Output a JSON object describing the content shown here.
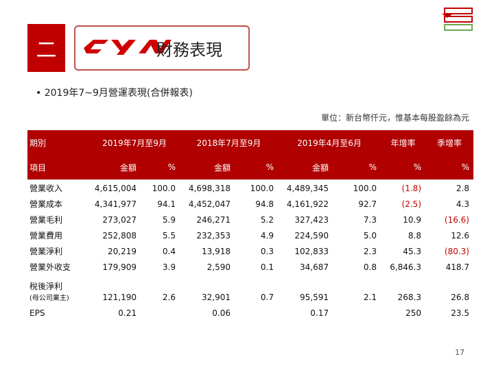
{
  "header": {
    "section": "二",
    "title": "財務表現"
  },
  "bullet": "2019年7~9月營運表現(合併報表)",
  "unit": "單位：新台幣仟元，惟基本每股盈餘為元",
  "table": {
    "header_row1": [
      "期別",
      "2019年7月至9月",
      "2018年7月至9月",
      "2019年4月至6月",
      "年增率",
      "季增率"
    ],
    "header_row2": [
      "項目",
      "金額",
      "%",
      "金額",
      "%",
      "金額",
      "%",
      "%",
      "%"
    ],
    "rows": [
      {
        "label": "營業收入",
        "cells": [
          "4,615,004",
          "100.0",
          "4,698,318",
          "100.0",
          "4,489,345",
          "100.0",
          "(1.8)",
          "2.8"
        ]
      },
      {
        "label": "營業成本",
        "cells": [
          "4,341,977",
          "94.1",
          "4,452,047",
          "94.8",
          "4,161,922",
          "92.7",
          "(2.5)",
          "4.3"
        ]
      },
      {
        "label": "營業毛利",
        "cells": [
          "273,027",
          "5.9",
          "246,271",
          "5.2",
          "327,423",
          "7.3",
          "10.9",
          "(16.6)"
        ]
      },
      {
        "label": "營業費用",
        "cells": [
          "252,808",
          "5.5",
          "232,353",
          "4.9",
          "224,590",
          "5.0",
          "8.8",
          "12.6"
        ]
      },
      {
        "label": "營業淨利",
        "cells": [
          "20,219",
          "0.4",
          "13,918",
          "0.3",
          "102,833",
          "2.3",
          "45.3",
          "(80.3)"
        ]
      },
      {
        "label": "營業外收支",
        "cells": [
          "179,909",
          "3.9",
          "2,590",
          "0.1",
          "34,687",
          "0.8",
          "6,846.3",
          "418.7"
        ]
      },
      {
        "label": "稅後淨利",
        "note": "(母公司業主)",
        "cells": [
          "121,190",
          "2.6",
          "32,901",
          "0.7",
          "95,591",
          "2.1",
          "268.3",
          "26.8"
        ]
      },
      {
        "label": "EPS",
        "cells": [
          "0.21",
          null,
          "0.06",
          null,
          "0.17",
          null,
          "250",
          "23.5"
        ]
      }
    ]
  },
  "page_number": "17"
}
